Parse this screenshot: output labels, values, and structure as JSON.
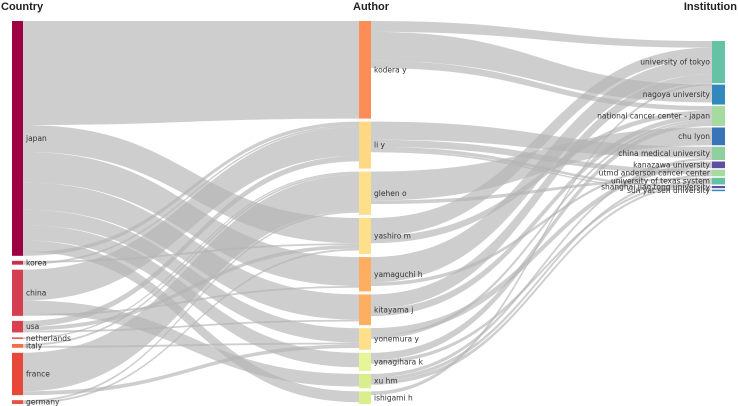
{
  "columns": {
    "country": "Country",
    "author": "Author",
    "institution": "Institution"
  },
  "countries": [
    {
      "id": "japan",
      "label": "japan",
      "value": 61,
      "color": "#9e0142"
    },
    {
      "id": "korea",
      "label": "korea",
      "value": 1,
      "color": "#c8304f"
    },
    {
      "id": "china",
      "label": "china",
      "value": 12,
      "color": "#d53e4f"
    },
    {
      "id": "usa",
      "label": "usa",
      "value": 3,
      "color": "#d8404f"
    },
    {
      "id": "netherlands",
      "label": "netherlands",
      "value": 0.4,
      "color": "#e05050"
    },
    {
      "id": "italy",
      "label": "italy",
      "value": 1,
      "color": "#f46d43"
    },
    {
      "id": "france",
      "label": "france",
      "value": 11,
      "color": "#e8483a"
    },
    {
      "id": "germany",
      "label": "germany",
      "value": 1,
      "color": "#e45444"
    }
  ],
  "authors": [
    {
      "id": "kodera",
      "label": "kodera y",
      "value": 27,
      "color": "#fc8d59"
    },
    {
      "id": "li",
      "label": "li y",
      "value": 13,
      "color": "#fed883"
    },
    {
      "id": "glehen",
      "label": "glehen o",
      "value": 12,
      "color": "#fee08b"
    },
    {
      "id": "yashiro",
      "label": "yashiro m",
      "value": 10,
      "color": "#fee08b"
    },
    {
      "id": "yamaguchi",
      "label": "yamaguchi h",
      "value": 9.5,
      "color": "#fdae61"
    },
    {
      "id": "kitayama",
      "label": "kitayama j",
      "value": 8.5,
      "color": "#fdae61"
    },
    {
      "id": "yonemura",
      "label": "yonemura y",
      "value": 6,
      "color": "#fee08b"
    },
    {
      "id": "yanagihara",
      "label": "yanagihara k",
      "value": 5,
      "color": "#e6f598"
    },
    {
      "id": "xu",
      "label": "xu hm",
      "value": 4,
      "color": "#d9ef8b"
    },
    {
      "id": "ishigami",
      "label": "ishigami h",
      "value": 3.5,
      "color": "#d9ef8b"
    }
  ],
  "institutions": [
    {
      "id": "tokyo",
      "label": "university of tokyo",
      "value": 19,
      "color": "#66c2a5"
    },
    {
      "id": "nagoya",
      "label": "nagoya university",
      "value": 9,
      "color": "#3288bd"
    },
    {
      "id": "ncc",
      "label": "national cancer center - japan",
      "value": 9,
      "color": "#a6dba0"
    },
    {
      "id": "lyon",
      "label": "chu lyon",
      "value": 8,
      "color": "#3a74b8"
    },
    {
      "id": "cmu",
      "label": "china medical university",
      "value": 6,
      "color": "#8fd19e"
    },
    {
      "id": "kanazawa",
      "label": "kanazawa university",
      "value": 3,
      "color": "#5e4fa2"
    },
    {
      "id": "mdanderson",
      "label": "utmd anderson cancer center",
      "value": 3,
      "color": "#a6dba0"
    },
    {
      "id": "texas",
      "label": "university of texas system",
      "value": 3,
      "color": "#66c2a5"
    },
    {
      "id": "sjtu",
      "label": "shanghai jiao tong university",
      "value": 1,
      "color": "#5e4fa2"
    },
    {
      "id": "sysu",
      "label": "sun yat sen university",
      "value": 0.6,
      "color": "#3288bd"
    }
  ],
  "country_author_links": [
    {
      "source": "japan",
      "target": "kodera",
      "value": 27
    },
    {
      "source": "japan",
      "target": "yashiro",
      "value": 7
    },
    {
      "source": "japan",
      "target": "yamaguchi",
      "value": 8
    },
    {
      "source": "japan",
      "target": "kitayama",
      "value": 7
    },
    {
      "source": "japan",
      "target": "yonemura",
      "value": 4
    },
    {
      "source": "japan",
      "target": "yanagihara",
      "value": 4
    },
    {
      "source": "japan",
      "target": "ishigami",
      "value": 3
    },
    {
      "source": "japan",
      "target": "li",
      "value": 1
    },
    {
      "source": "korea",
      "target": "yashiro",
      "value": 0.5
    },
    {
      "source": "korea",
      "target": "li",
      "value": 0.5
    },
    {
      "source": "china",
      "target": "li",
      "value": 8
    },
    {
      "source": "china",
      "target": "xu",
      "value": 3.5
    },
    {
      "source": "china",
      "target": "yamaguchi",
      "value": 0.5
    },
    {
      "source": "usa",
      "target": "li",
      "value": 1.5
    },
    {
      "source": "usa",
      "target": "yashiro",
      "value": 1
    },
    {
      "source": "usa",
      "target": "kitayama",
      "value": 0.5
    },
    {
      "source": "netherlands",
      "target": "glehen",
      "value": 0.4
    },
    {
      "source": "italy",
      "target": "glehen",
      "value": 0.5
    },
    {
      "source": "italy",
      "target": "yonemura",
      "value": 0.5
    },
    {
      "source": "france",
      "target": "glehen",
      "value": 10
    },
    {
      "source": "france",
      "target": "yonemura",
      "value": 1
    },
    {
      "source": "germany",
      "target": "glehen",
      "value": 0.5
    },
    {
      "source": "germany",
      "target": "yashiro",
      "value": 0.5
    }
  ],
  "author_institution_links": [
    {
      "source": "kodera",
      "target": "tokyo",
      "value": 3
    },
    {
      "source": "kodera",
      "target": "nagoya",
      "value": 8
    },
    {
      "source": "kodera",
      "target": "ncc",
      "value": 2
    },
    {
      "source": "li",
      "target": "cmu",
      "value": 5
    },
    {
      "source": "li",
      "target": "mdanderson",
      "value": 2
    },
    {
      "source": "li",
      "target": "sjtu",
      "value": 1
    },
    {
      "source": "li",
      "target": "sysu",
      "value": 0.5
    },
    {
      "source": "glehen",
      "target": "lyon",
      "value": 8
    },
    {
      "source": "glehen",
      "target": "texas",
      "value": 1
    },
    {
      "source": "yashiro",
      "target": "tokyo",
      "value": 5
    },
    {
      "source": "yashiro",
      "target": "ncc",
      "value": 2
    },
    {
      "source": "yamaguchi",
      "target": "tokyo",
      "value": 7
    },
    {
      "source": "yamaguchi",
      "target": "kanazawa",
      "value": 1
    },
    {
      "source": "kitayama",
      "target": "tokyo",
      "value": 4
    },
    {
      "source": "kitayama",
      "target": "ncc",
      "value": 2
    },
    {
      "source": "yonemura",
      "target": "kanazawa",
      "value": 2
    },
    {
      "source": "yonemura",
      "target": "ncc",
      "value": 1
    },
    {
      "source": "yanagihara",
      "target": "ncc",
      "value": 2
    },
    {
      "source": "yanagihara",
      "target": "texas",
      "value": 1
    },
    {
      "source": "xu",
      "target": "cmu",
      "value": 1
    },
    {
      "source": "xu",
      "target": "mdanderson",
      "value": 1
    },
    {
      "source": "xu",
      "target": "texas",
      "value": 1
    },
    {
      "source": "ishigami",
      "target": "tokyo",
      "value": 1
    }
  ]
}
